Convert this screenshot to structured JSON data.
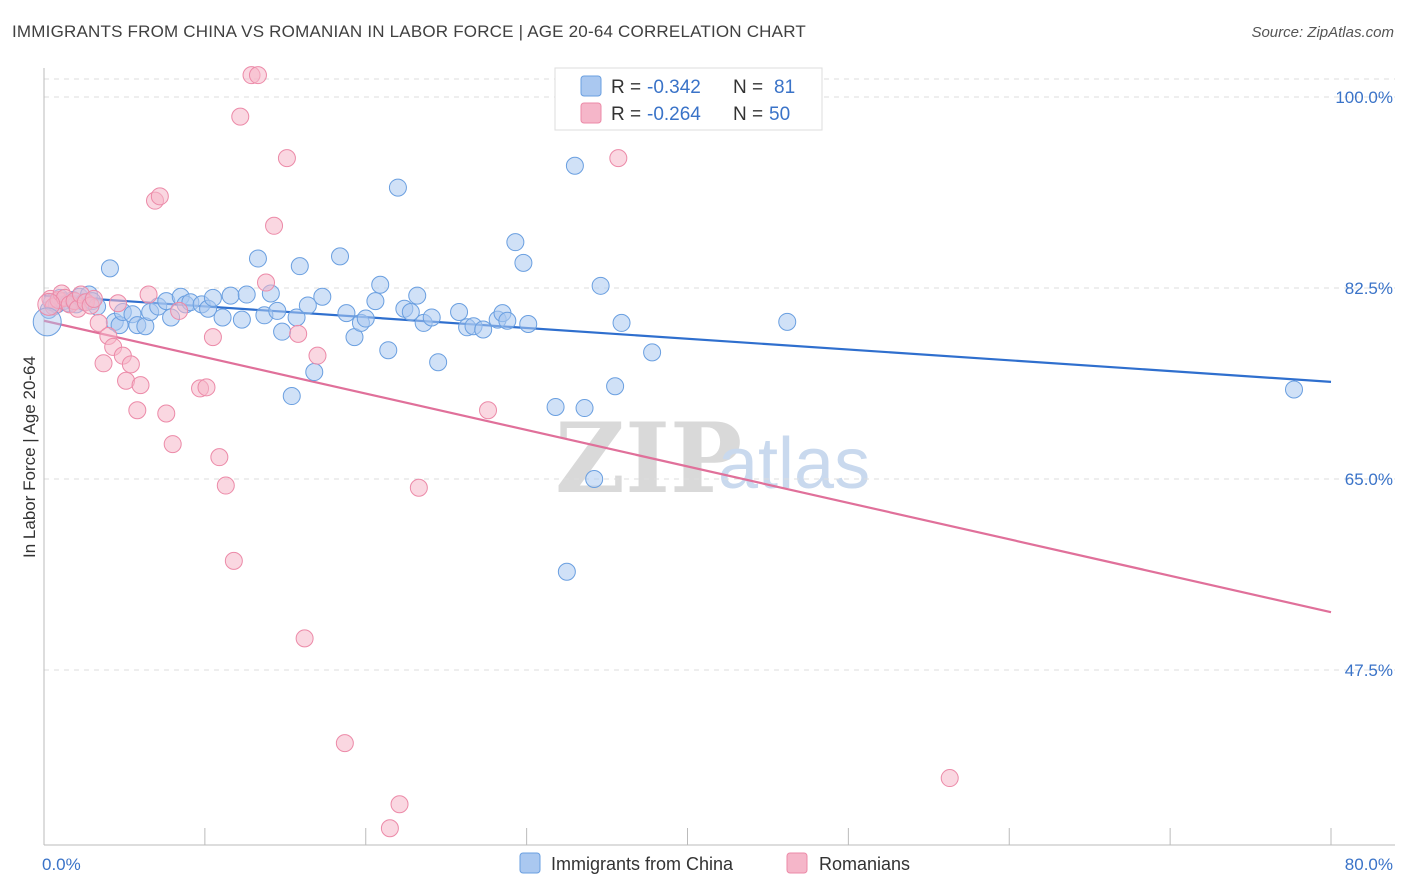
{
  "header": {
    "title": "IMMIGRANTS FROM CHINA VS ROMANIAN IN LABOR FORCE | AGE 20-64 CORRELATION CHART",
    "source": "Source: ZipAtlas.com"
  },
  "watermark": {
    "zip": "ZIP",
    "atlas": "atlas"
  },
  "legend": {
    "rows": [
      {
        "r_label": "R =",
        "r_value": "-0.342",
        "n_label": "N =",
        "n_value": "81",
        "color": "#aac8f0"
      },
      {
        "r_label": "R =",
        "r_value": "-0.264",
        "n_label": "N =",
        "n_value": "50",
        "color": "#f5b6c9"
      }
    ]
  },
  "bottom_legend": {
    "items": [
      {
        "label": "Immigrants from China",
        "color": "#aac8f0"
      },
      {
        "label": "Romanians",
        "color": "#f5b6c9"
      }
    ]
  },
  "chart_data": {
    "type": "scatter",
    "title": "IMMIGRANTS FROM CHINA VS ROMANIAN IN LABOR FORCE | AGE 20-64 CORRELATION CHART",
    "xlabel": "",
    "ylabel": "In Labor Force | Age 20-64",
    "xlim": [
      0,
      80
    ],
    "ylim": [
      33,
      102
    ],
    "x_tick_labels": [
      "0.0%",
      "80.0%"
    ],
    "y_ticks": [
      100.0,
      82.5,
      65.0,
      47.5
    ],
    "y_tick_labels": [
      "100.0%",
      "82.5%",
      "65.0%",
      "47.5%"
    ],
    "grid": true,
    "legend_placement": "top-center",
    "series": [
      {
        "name": "Immigrants from China",
        "color": "#aac8f0",
        "edge": "#6a9fe0",
        "trend_color": "#2f6fce",
        "trend": {
          "x": [
            0,
            80
          ],
          "y": [
            81.8,
            73.9
          ]
        },
        "points": [
          [
            0.3,
            80.5
          ],
          [
            0.5,
            81.2
          ],
          [
            0.8,
            81.0
          ],
          [
            1.0,
            81.6
          ],
          [
            1.2,
            81.3
          ],
          [
            1.5,
            81.1
          ],
          [
            1.8,
            81.4
          ],
          [
            2.0,
            81.0
          ],
          [
            2.2,
            81.7
          ],
          [
            2.5,
            81.2
          ],
          [
            2.8,
            81.9
          ],
          [
            3.0,
            81.3
          ],
          [
            3.3,
            80.8
          ],
          [
            4.1,
            84.3
          ],
          [
            4.4,
            79.4
          ],
          [
            4.7,
            79.1
          ],
          [
            4.9,
            80.3
          ],
          [
            5.5,
            80.1
          ],
          [
            5.8,
            79.1
          ],
          [
            6.3,
            79.0
          ],
          [
            6.6,
            80.3
          ],
          [
            7.1,
            80.8
          ],
          [
            7.6,
            81.3
          ],
          [
            7.9,
            79.8
          ],
          [
            8.5,
            81.7
          ],
          [
            8.8,
            81.0
          ],
          [
            9.1,
            81.2
          ],
          [
            9.8,
            81.0
          ],
          [
            10.2,
            80.6
          ],
          [
            10.5,
            81.6
          ],
          [
            11.1,
            79.8
          ],
          [
            11.6,
            81.8
          ],
          [
            12.3,
            79.6
          ],
          [
            12.6,
            81.9
          ],
          [
            13.3,
            85.2
          ],
          [
            13.7,
            80.0
          ],
          [
            14.1,
            82.0
          ],
          [
            14.5,
            80.4
          ],
          [
            14.8,
            78.5
          ],
          [
            15.4,
            72.6
          ],
          [
            15.7,
            79.8
          ],
          [
            15.9,
            84.5
          ],
          [
            16.4,
            80.9
          ],
          [
            16.8,
            74.8
          ],
          [
            17.3,
            81.7
          ],
          [
            18.4,
            85.4
          ],
          [
            18.8,
            80.2
          ],
          [
            19.3,
            78.0
          ],
          [
            19.7,
            79.3
          ],
          [
            20.0,
            79.7
          ],
          [
            20.6,
            81.3
          ],
          [
            20.9,
            82.8
          ],
          [
            21.4,
            76.8
          ],
          [
            22.0,
            91.7
          ],
          [
            22.4,
            80.6
          ],
          [
            22.8,
            80.3
          ],
          [
            23.2,
            81.8
          ],
          [
            23.6,
            79.3
          ],
          [
            24.1,
            79.8
          ],
          [
            24.5,
            75.7
          ],
          [
            25.8,
            80.3
          ],
          [
            26.3,
            78.9
          ],
          [
            26.7,
            79.0
          ],
          [
            27.3,
            78.7
          ],
          [
            28.2,
            79.6
          ],
          [
            28.5,
            80.2
          ],
          [
            28.8,
            79.5
          ],
          [
            29.3,
            86.7
          ],
          [
            29.8,
            84.8
          ],
          [
            30.1,
            79.2
          ],
          [
            31.8,
            71.6
          ],
          [
            32.5,
            56.5
          ],
          [
            33.0,
            93.7
          ],
          [
            33.6,
            71.5
          ],
          [
            34.2,
            65.0
          ],
          [
            34.6,
            82.7
          ],
          [
            35.5,
            73.5
          ],
          [
            35.9,
            79.3
          ],
          [
            37.8,
            76.6
          ],
          [
            46.2,
            79.4
          ],
          [
            77.7,
            73.2
          ]
        ]
      },
      {
        "name": "Romanians",
        "color": "#f5b6c9",
        "edge": "#ec8aa8",
        "trend_color": "#e0709a",
        "trend": {
          "x": [
            0,
            80
          ],
          "y": [
            79.5,
            52.8
          ]
        },
        "points": [
          [
            0.4,
            81.5
          ],
          [
            0.6,
            80.8
          ],
          [
            0.9,
            81.4
          ],
          [
            1.1,
            82.0
          ],
          [
            1.3,
            81.6
          ],
          [
            1.6,
            81.0
          ],
          [
            1.9,
            81.3
          ],
          [
            2.1,
            80.6
          ],
          [
            2.3,
            81.9
          ],
          [
            2.6,
            81.2
          ],
          [
            2.9,
            80.9
          ],
          [
            3.1,
            81.5
          ],
          [
            3.4,
            79.3
          ],
          [
            3.7,
            75.6
          ],
          [
            4.0,
            78.1
          ],
          [
            4.3,
            77.1
          ],
          [
            4.6,
            81.1
          ],
          [
            4.9,
            76.3
          ],
          [
            5.1,
            74.0
          ],
          [
            5.4,
            75.5
          ],
          [
            5.8,
            71.3
          ],
          [
            6.0,
            73.6
          ],
          [
            6.5,
            81.9
          ],
          [
            6.9,
            90.5
          ],
          [
            7.2,
            90.9
          ],
          [
            7.6,
            71.0
          ],
          [
            8.0,
            68.2
          ],
          [
            8.4,
            80.4
          ],
          [
            9.7,
            73.3
          ],
          [
            10.1,
            73.4
          ],
          [
            10.5,
            78.0
          ],
          [
            10.9,
            67.0
          ],
          [
            11.3,
            64.4
          ],
          [
            11.8,
            57.5
          ],
          [
            12.2,
            98.2
          ],
          [
            12.9,
            102.0
          ],
          [
            13.3,
            102.0
          ],
          [
            13.8,
            83.0
          ],
          [
            14.3,
            88.2
          ],
          [
            15.1,
            94.4
          ],
          [
            15.8,
            78.3
          ],
          [
            16.2,
            50.4
          ],
          [
            17.0,
            76.3
          ],
          [
            18.7,
            40.8
          ],
          [
            21.5,
            33.0
          ],
          [
            22.1,
            35.2
          ],
          [
            23.3,
            64.2
          ],
          [
            27.6,
            71.3
          ],
          [
            35.7,
            94.4
          ],
          [
            56.3,
            37.6
          ]
        ]
      }
    ]
  }
}
